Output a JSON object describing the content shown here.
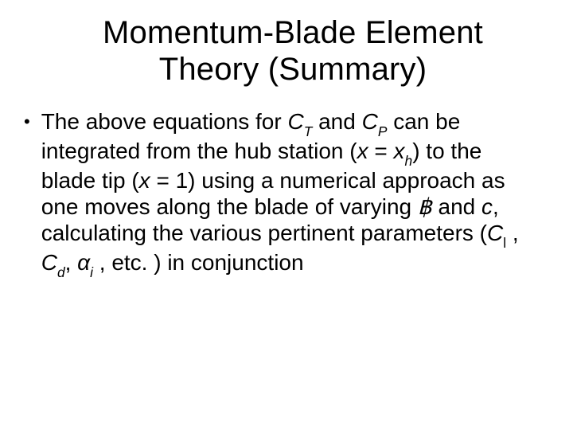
{
  "title_line1": "Momentum-Blade Element",
  "title_line2": "Theory (Summary)",
  "b": {
    "t1": "The above equations for ",
    "CT_C": "C",
    "CT_T": "T",
    "t2": "  and ",
    "CP_C": "C",
    "CP_P": "P",
    "t3": "  can be integrated from the hub station (",
    "x1": "x",
    "eq1": " = ",
    "x2": "x",
    "h": "h",
    "t4": ") to the blade tip (",
    "x3": "x",
    "eq2": " = 1) using a numerical approach as one moves along the blade of varying ",
    "beta": "฿",
    "t5": " and ",
    "c": "c",
    "t6": ", calculating the various pertinent parameters (",
    "Cl_C": "C",
    "Cl_l": "l",
    "t7": " , ",
    "Cd_C": "C",
    "Cd_d": "d",
    "t8": ", ",
    "alpha": "α",
    "ai_i": "i",
    "t9": " , etc. )  in conjunction"
  }
}
